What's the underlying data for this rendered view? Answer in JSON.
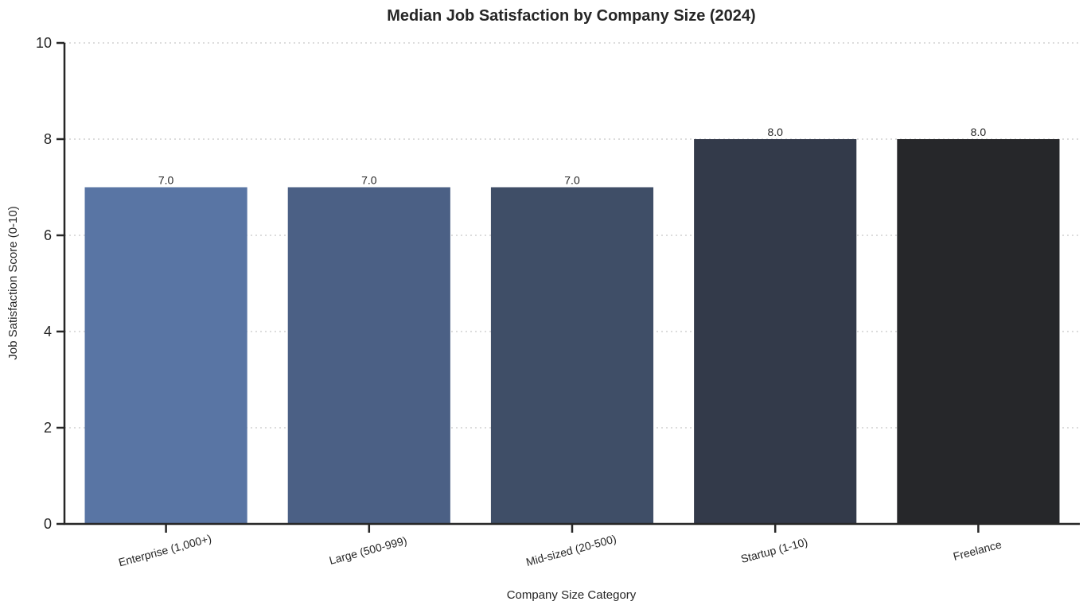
{
  "chart_data": {
    "type": "bar",
    "title": "Median Job Satisfaction by Company Size (2024)",
    "xlabel": "Company Size Category",
    "ylabel": "Job Satisfaction Score (0-10)",
    "categories": [
      "Enterprise (1,000+)",
      "Large (500-999)",
      "Mid-sized (20-500)",
      "Startup (1-10)",
      "Freelance"
    ],
    "values": [
      7.0,
      7.0,
      7.0,
      8.0,
      8.0
    ],
    "value_labels": [
      "7.0",
      "7.0",
      "7.0",
      "8.0",
      "8.0"
    ],
    "colors": [
      "#5975a4",
      "#4b6085",
      "#3f4e67",
      "#333a4a",
      "#26272a"
    ],
    "ylim": [
      0,
      10
    ],
    "yticks": [
      0,
      2,
      4,
      6,
      8,
      10
    ],
    "grid": "y-dotted",
    "legend": "none"
  }
}
